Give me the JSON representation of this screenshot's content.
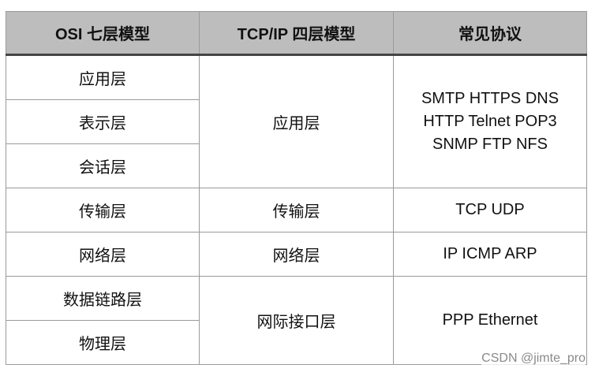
{
  "headers": [
    "OSI 七层模型",
    "TCP/IP 四层模型",
    "常见协议"
  ],
  "osi": [
    "应用层",
    "表示层",
    "会话层",
    "传输层",
    "网络层",
    "数据链路层",
    "物理层"
  ],
  "tcpip": [
    "应用层",
    "传输层",
    "网络层",
    "网际接口层"
  ],
  "protocols": {
    "application": [
      "SMTP HTTPS DNS",
      "HTTP Telnet POP3",
      "SNMP FTP NFS"
    ],
    "transport": "TCP UDP",
    "network": "IP ICMP ARP",
    "interface": "PPP Ethernet"
  },
  "watermark": "CSDN @jimte_pro",
  "colors": {
    "header_bg": "#bdbdbd",
    "border": "#9a9a9a"
  }
}
